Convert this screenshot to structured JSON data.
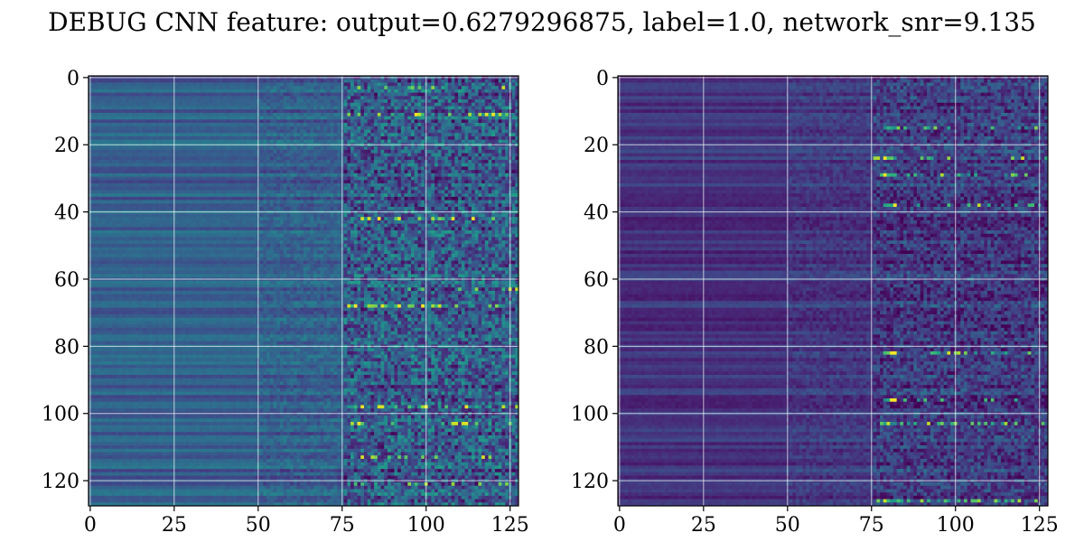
{
  "figure": {
    "suptitle": "DEBUG CNN feature: output=0.6279296875, label=1.0, network_snr=9.135"
  },
  "chart_data": [
    {
      "type": "heatmap",
      "colormap": "viridis",
      "grid": true,
      "rows": 128,
      "cols": 128,
      "xlim": [
        -0.5,
        127.5
      ],
      "ylim": [
        127.5,
        -0.5
      ],
      "x_ticks": [
        0,
        25,
        50,
        75,
        100,
        125
      ],
      "y_ticks": [
        0,
        20,
        40,
        60,
        80,
        100,
        120
      ],
      "x_tick_labels": [
        "0",
        "25",
        "50",
        "75",
        "100",
        "125"
      ],
      "y_tick_labels": [
        "0",
        "20",
        "40",
        "60",
        "80",
        "100",
        "120"
      ],
      "column_bands": [
        {
          "cols": [
            0,
            50
          ],
          "mean": 0.3,
          "row_variation": 0.1,
          "noise": 0.02
        },
        {
          "cols": [
            50,
            76
          ],
          "mean": 0.3,
          "row_variation": 0.09,
          "noise": 0.07
        },
        {
          "cols": [
            76,
            128
          ],
          "mean": 0.28,
          "row_variation": 0.07,
          "noise": 0.22
        }
      ],
      "highlight_rows": [
        3,
        11,
        42,
        63,
        68,
        98,
        103,
        113,
        121
      ]
    },
    {
      "type": "heatmap",
      "colormap": "viridis",
      "grid": true,
      "rows": 128,
      "cols": 128,
      "xlim": [
        -0.5,
        127.5
      ],
      "ylim": [
        127.5,
        -0.5
      ],
      "x_ticks": [
        0,
        25,
        50,
        75,
        100,
        125
      ],
      "y_ticks": [
        0,
        20,
        40,
        60,
        80,
        100,
        120
      ],
      "x_tick_labels": [
        "0",
        "25",
        "50",
        "75",
        "100",
        "125"
      ],
      "y_tick_labels": [
        "0",
        "20",
        "40",
        "60",
        "80",
        "100",
        "120"
      ],
      "column_bands": [
        {
          "cols": [
            0,
            50
          ],
          "mean": 0.15,
          "row_variation": 0.08,
          "noise": 0.02
        },
        {
          "cols": [
            50,
            76
          ],
          "mean": 0.17,
          "row_variation": 0.07,
          "noise": 0.06
        },
        {
          "cols": [
            76,
            128
          ],
          "mean": 0.18,
          "row_variation": 0.07,
          "noise": 0.14
        }
      ],
      "highlight_columns": [
        79,
        80,
        81,
        82
      ],
      "highlight_rows": [
        15,
        24,
        29,
        38,
        82,
        96,
        103,
        126
      ]
    }
  ]
}
